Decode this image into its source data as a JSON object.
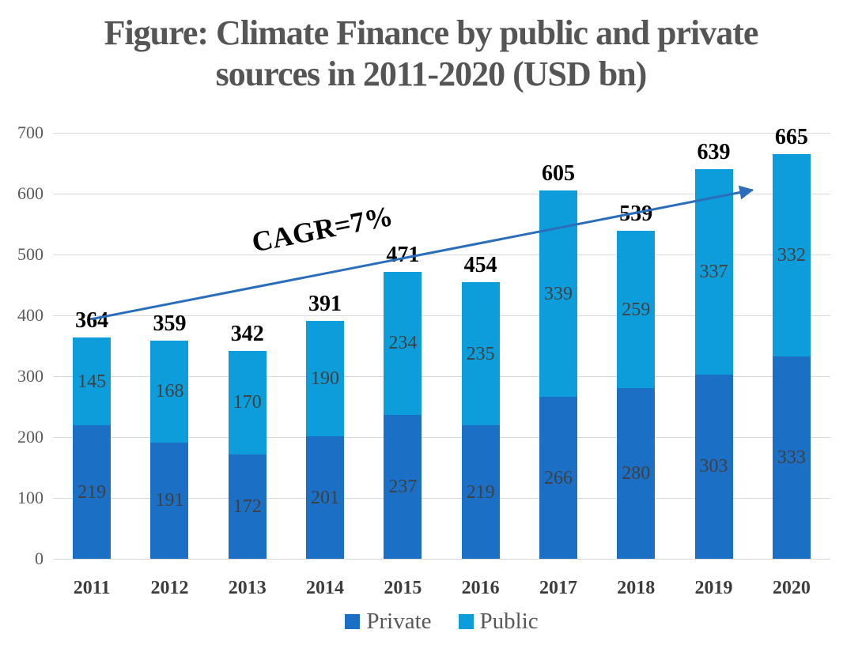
{
  "title": {
    "line1": "Figure: Climate Finance by public and private",
    "line2": "sources in 2011-2020 (USD bn)"
  },
  "chart_data": {
    "type": "bar",
    "stacked": true,
    "title": "Figure: Climate Finance by public and private sources in 2011-2020 (USD bn)",
    "categories": [
      "2011",
      "2012",
      "2013",
      "2014",
      "2015",
      "2016",
      "2017",
      "2018",
      "2019",
      "2020"
    ],
    "series": [
      {
        "name": "Private",
        "color": "#1B6FC4",
        "values": [
          219,
          191,
          172,
          201,
          237,
          219,
          266,
          280,
          303,
          333
        ]
      },
      {
        "name": "Public",
        "color": "#0D9DDB",
        "values": [
          145,
          168,
          170,
          190,
          234,
          235,
          339,
          259,
          337,
          332
        ]
      }
    ],
    "totals": [
      364,
      359,
      342,
      391,
      471,
      454,
      605,
      539,
      639,
      665
    ],
    "ylim": [
      0,
      700
    ],
    "yticks": [
      0,
      100,
      200,
      300,
      400,
      500,
      600,
      700
    ],
    "grid": true,
    "gridline_color": "#D9D9D9",
    "legend_position": "bottom",
    "annotation": {
      "label": "CAGR=7%",
      "arrow_color": "#2A6EBB",
      "arrow": {
        "from_slot": 0.5,
        "from_value": 394,
        "to_slot": 9.0,
        "to_value": 606
      }
    }
  }
}
